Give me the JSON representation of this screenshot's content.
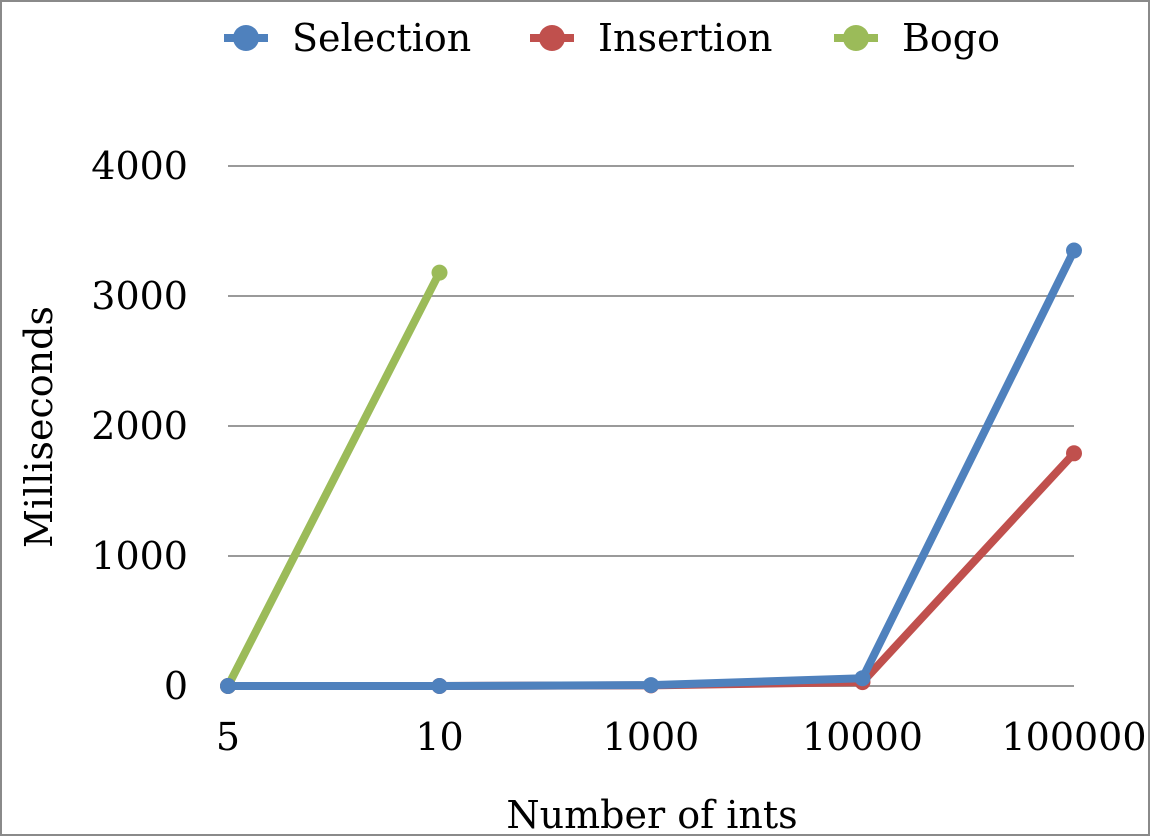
{
  "chart_data": {
    "type": "line",
    "categories": [
      "5",
      "10",
      "1000",
      "10000",
      "100000"
    ],
    "series": [
      {
        "name": "Selection",
        "color": "#4f81bd",
        "values": [
          0,
          0,
          7,
          60,
          3350
        ]
      },
      {
        "name": "Insertion",
        "color": "#c0504d",
        "values": [
          0,
          0,
          5,
          30,
          1790
        ]
      },
      {
        "name": "Bogo",
        "color": "#9bbb59",
        "values": [
          0,
          3180,
          null,
          null,
          null
        ]
      }
    ],
    "xlabel": "Number of ints",
    "ylabel": "Milliseconds",
    "ylim": [
      0,
      4000
    ],
    "yticks": [
      "0",
      "1000",
      "2000",
      "3000",
      "4000"
    ],
    "grid": true,
    "legend_position": "top"
  }
}
